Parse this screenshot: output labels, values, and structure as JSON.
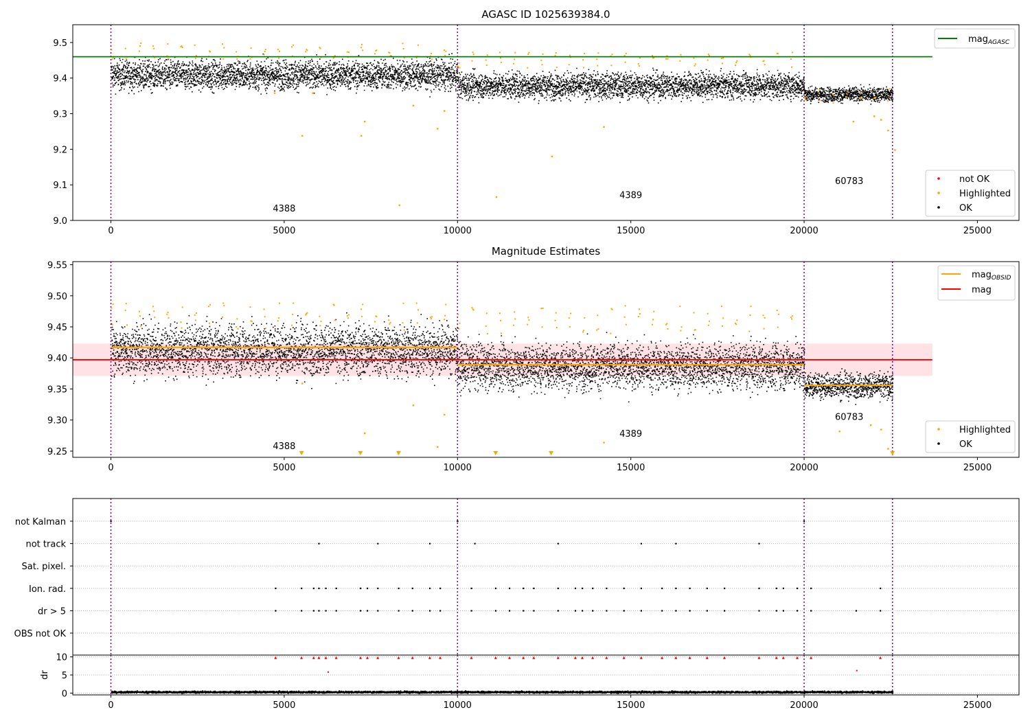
{
  "chart_data": [
    {
      "type": "scatter",
      "title": "AGASC ID 1025639384.0",
      "xlim": [
        -1100,
        26200
      ],
      "ylim": [
        9.0,
        9.55
      ],
      "x_ticks": [
        0,
        5000,
        10000,
        15000,
        20000,
        25000
      ],
      "y_ticks": [
        9.0,
        9.1,
        9.2,
        9.3,
        9.4,
        9.5
      ],
      "obs_boundaries": [
        0,
        10000,
        20000,
        22550
      ],
      "obs_labels": [
        {
          "text": "4388",
          "x": 5000,
          "y": 9.025
        },
        {
          "text": "4389",
          "x": 15000,
          "y": 9.063
        },
        {
          "text": "60783",
          "x": 21300,
          "y": 9.102
        }
      ],
      "reference_lines": [
        {
          "name": "mag_AGASC",
          "label": "mag",
          "subscript": "AGASC",
          "y": 9.46,
          "x_range": [
            -1100,
            23700
          ],
          "color": "#008000"
        }
      ],
      "legend_top": [
        {
          "label": "mag",
          "subscript": "AGASC",
          "color": "#008000",
          "kind": "line"
        }
      ],
      "legend_bottom": [
        {
          "label": "not OK",
          "color": "#ff0000",
          "kind": "dot"
        },
        {
          "label": "Highlighted",
          "color": "#ffa500",
          "kind": "dot"
        },
        {
          "label": "OK",
          "color": "#000000",
          "kind": "dot"
        }
      ],
      "series": [
        {
          "name": "OK",
          "color": "#000000",
          "segments": [
            {
              "x": [
                0,
                10000
              ],
              "mean": 9.41,
              "spread": 0.045
            },
            {
              "x": [
                10000,
                20000
              ],
              "mean": 9.38,
              "spread": 0.04
            },
            {
              "x": [
                20000,
                22550
              ],
              "mean": 9.355,
              "spread": 0.022
            }
          ]
        },
        {
          "name": "Highlighted",
          "color": "#ffa500",
          "outliers": [
            [
              5500,
              9.24
            ],
            [
              5800,
              9.36
            ],
            [
              4700,
              9.36
            ],
            [
              7200,
              9.24
            ],
            [
              7300,
              9.28
            ],
            [
              8300,
              9.045
            ],
            [
              8700,
              9.325
            ],
            [
              9400,
              9.26
            ],
            [
              9600,
              9.31
            ],
            [
              11100,
              9.068
            ],
            [
              12700,
              9.182
            ],
            [
              14200,
              9.265
            ],
            [
              21400,
              9.28
            ],
            [
              22000,
              9.295
            ],
            [
              22200,
              9.285
            ],
            [
              22400,
              9.255
            ],
            [
              22600,
              9.2
            ]
          ]
        }
      ]
    },
    {
      "type": "scatter",
      "title": "Magnitude Estimates",
      "xlim": [
        -1100,
        26200
      ],
      "ylim": [
        9.24,
        9.555
      ],
      "x_ticks": [
        0,
        5000,
        10000,
        15000,
        20000,
        25000
      ],
      "y_ticks": [
        9.25,
        9.3,
        9.35,
        9.4,
        9.45,
        9.5,
        9.55
      ],
      "obs_boundaries": [
        0,
        10000,
        20000,
        22550
      ],
      "obs_labels": [
        {
          "text": "4388",
          "x": 5000,
          "y": 9.253
        },
        {
          "text": "4389",
          "x": 15000,
          "y": 9.273
        },
        {
          "text": "60783",
          "x": 21300,
          "y": 9.3
        }
      ],
      "mag": 9.397,
      "mag_band": [
        9.371,
        9.423
      ],
      "mag_obsid": [
        {
          "x": [
            0,
            10000
          ],
          "value": 9.417
        },
        {
          "x": [
            10000,
            20000
          ],
          "value": 9.389
        },
        {
          "x": [
            20000,
            22550
          ],
          "value": 9.356
        }
      ],
      "legend_top": [
        {
          "label": "mag",
          "subscript": "OBSID",
          "color": "#ffa500",
          "kind": "line"
        },
        {
          "label": "mag",
          "color": "#ff0000",
          "kind": "line"
        }
      ],
      "legend_bottom": [
        {
          "label": "Highlighted",
          "color": "#ffa500",
          "kind": "dot"
        },
        {
          "label": "OK",
          "color": "#000000",
          "kind": "dot"
        }
      ],
      "clipped_low_markers_x": [
        5500,
        7200,
        8300,
        11100,
        12700,
        22550
      ]
    },
    {
      "type": "scatter",
      "title": "",
      "xlim": [
        -1100,
        26200
      ],
      "flag_rows": [
        "not Kalman",
        "not track",
        "Sat. pixel.",
        "Ion. rad.",
        "dr > 5",
        "OBS not OK"
      ],
      "obs_boundaries": [
        0,
        10000,
        20000,
        22550
      ],
      "flag_points": {
        "not Kalman": [
          0,
          10000,
          20000
        ],
        "not track": [
          6000,
          7700,
          9200,
          10500,
          12900,
          15300,
          16300,
          18700
        ],
        "Ion. rad.": [
          4750,
          5500,
          5850,
          6000,
          6200,
          6500,
          7200,
          7400,
          7700,
          8300,
          8700,
          9200,
          9500,
          10400,
          11100,
          11500,
          11900,
          12200,
          12900,
          13400,
          13600,
          13900,
          14300,
          14800,
          15300,
          15900,
          16300,
          16700,
          17200,
          17700,
          18700,
          19200,
          19400,
          19800,
          20200,
          22200
        ],
        "dr > 5": [
          4750,
          5500,
          5850,
          6000,
          6200,
          6500,
          7200,
          7400,
          7700,
          8300,
          8700,
          9200,
          9500,
          10400,
          11100,
          11500,
          11900,
          12200,
          12900,
          13400,
          13600,
          13900,
          14300,
          14800,
          15300,
          15900,
          16300,
          16700,
          17200,
          17700,
          18700,
          19200,
          19400,
          19800,
          20200,
          21500,
          22200
        ]
      }
    },
    {
      "type": "scatter",
      "title": "",
      "ylabel": "dr",
      "xlim": [
        -1100,
        26200
      ],
      "ylim": [
        -0.5,
        10.5
      ],
      "x_ticks": [
        0,
        5000,
        10000,
        15000,
        20000,
        25000
      ],
      "y_ticks": [
        0,
        5,
        10
      ],
      "obs_boundaries": [
        0,
        10000,
        20000,
        22550
      ],
      "dr_baseline": {
        "x": [
          0,
          22550
        ],
        "level": 0.4,
        "spread": 0.3
      },
      "dr_high_x": [
        4750,
        5500,
        5850,
        6000,
        6200,
        6500,
        7200,
        7400,
        7700,
        8300,
        8700,
        9200,
        9500,
        10400,
        11100,
        11500,
        11900,
        12200,
        12900,
        13400,
        13600,
        13900,
        14300,
        14800,
        15300,
        15900,
        16300,
        16700,
        17200,
        17700,
        18700,
        19200,
        19400,
        19800,
        20200,
        22200
      ],
      "dr_mid": [
        [
          6250,
          6.0
        ],
        [
          21500,
          6.4
        ]
      ]
    }
  ]
}
